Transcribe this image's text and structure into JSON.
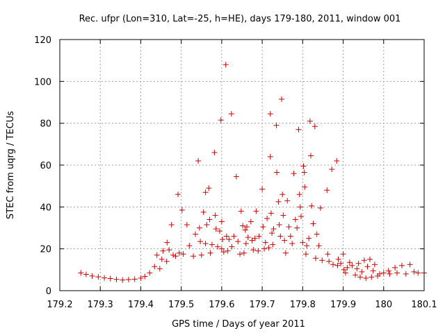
{
  "chart_data": {
    "type": "scatter",
    "title": "Rec. ufpr (Lon=310, Lat=-25, h=HE), days 179-180, 2011, window 001",
    "xlabel": "GPS time / Days of year 2011",
    "ylabel": "STEC from uqrg / TECUs",
    "xlim": [
      179.2,
      180.1
    ],
    "ylim": [
      0,
      120
    ],
    "xticks": [
      179.2,
      179.3,
      179.4,
      179.5,
      179.6,
      179.7,
      179.8,
      179.9,
      180.0,
      180.1
    ],
    "xtick_labels": [
      "179.2",
      "179.3",
      "179.4",
      "179.5",
      "179.6",
      "179.7",
      "179.8",
      "179.9",
      "180",
      "180.1"
    ],
    "yticks": [
      0,
      20,
      40,
      60,
      80,
      100,
      120
    ],
    "ytick_labels": [
      "0",
      "20",
      "40",
      "60",
      "80",
      "100",
      "120"
    ],
    "grid": true,
    "marker": "+",
    "color": "#cc0000",
    "points": [
      [
        179.252,
        8.5
      ],
      [
        179.265,
        7.8
      ],
      [
        179.28,
        7.0
      ],
      [
        179.295,
        6.6
      ],
      [
        179.31,
        6.1
      ],
      [
        179.325,
        5.8
      ],
      [
        179.34,
        5.4
      ],
      [
        179.355,
        5.1
      ],
      [
        179.37,
        5.3
      ],
      [
        179.385,
        5.5
      ],
      [
        179.4,
        6.0
      ],
      [
        179.41,
        6.8
      ],
      [
        179.422,
        8.5
      ],
      [
        179.434,
        11.5
      ],
      [
        179.44,
        17.0
      ],
      [
        179.447,
        10.5
      ],
      [
        179.452,
        15.0
      ],
      [
        179.455,
        19.0
      ],
      [
        179.465,
        23.0
      ],
      [
        179.464,
        14.0
      ],
      [
        179.47,
        19.5
      ],
      [
        179.476,
        31.5
      ],
      [
        179.48,
        17.0
      ],
      [
        179.486,
        16.5
      ],
      [
        179.492,
        46.0
      ],
      [
        179.495,
        18.0
      ],
      [
        179.502,
        38.5
      ],
      [
        179.505,
        17.5
      ],
      [
        179.514,
        31.5
      ],
      [
        179.52,
        21.5
      ],
      [
        179.53,
        16.5
      ],
      [
        179.535,
        27.0
      ],
      [
        179.542,
        62.0
      ],
      [
        179.545,
        30.0
      ],
      [
        179.547,
        23.5
      ],
      [
        179.55,
        17.0
      ],
      [
        179.555,
        37.5
      ],
      [
        179.56,
        47.0
      ],
      [
        179.56,
        22.5
      ],
      [
        179.563,
        31.5
      ],
      [
        179.568,
        49.0
      ],
      [
        179.57,
        34.0
      ],
      [
        179.572,
        18.0
      ],
      [
        179.576,
        22.0
      ],
      [
        179.582,
        66.0
      ],
      [
        179.584,
        36.0
      ],
      [
        179.586,
        29.5
      ],
      [
        179.59,
        21.0
      ],
      [
        179.595,
        28.5
      ],
      [
        179.598,
        81.5
      ],
      [
        179.6,
        33.0
      ],
      [
        179.6,
        20.0
      ],
      [
        179.602,
        24.5
      ],
      [
        179.605,
        18.5
      ],
      [
        179.61,
        108.0
      ],
      [
        179.612,
        26.0
      ],
      [
        179.615,
        19.0
      ],
      [
        179.618,
        24.5
      ],
      [
        179.624,
        84.5
      ],
      [
        179.625,
        21.0
      ],
      [
        179.63,
        26.0
      ],
      [
        179.636,
        54.5
      ],
      [
        179.64,
        23.5
      ],
      [
        179.645,
        17.5
      ],
      [
        179.648,
        38.0
      ],
      [
        179.652,
        31.0
      ],
      [
        179.655,
        18.0
      ],
      [
        179.658,
        29.0
      ],
      [
        179.66,
        22.5
      ],
      [
        179.662,
        30.5
      ],
      [
        179.665,
        25.5
      ],
      [
        179.672,
        33.0
      ],
      [
        179.675,
        24.0
      ],
      [
        179.678,
        19.5
      ],
      [
        179.682,
        25.0
      ],
      [
        179.685,
        38.0
      ],
      [
        179.69,
        19.0
      ],
      [
        179.692,
        26.0
      ],
      [
        179.7,
        48.5
      ],
      [
        179.702,
        30.5
      ],
      [
        179.705,
        20.0
      ],
      [
        179.708,
        23.0
      ],
      [
        179.712,
        34.5
      ],
      [
        179.716,
        20.5
      ],
      [
        179.72,
        84.5
      ],
      [
        179.72,
        64.0
      ],
      [
        179.722,
        37.0
      ],
      [
        179.724,
        27.5
      ],
      [
        179.726,
        22.0
      ],
      [
        179.728,
        29.5
      ],
      [
        179.735,
        79.0
      ],
      [
        179.736,
        56.5
      ],
      [
        179.74,
        42.5
      ],
      [
        179.742,
        31.5
      ],
      [
        179.745,
        26.0
      ],
      [
        179.748,
        91.5
      ],
      [
        179.75,
        46.0
      ],
      [
        179.752,
        36.0
      ],
      [
        179.755,
        24.0
      ],
      [
        179.758,
        18.0
      ],
      [
        179.762,
        43.0
      ],
      [
        179.766,
        30.5
      ],
      [
        179.77,
        26.0
      ],
      [
        179.774,
        22.5
      ],
      [
        179.778,
        56.0
      ],
      [
        179.782,
        34.0
      ],
      [
        179.786,
        30.0
      ],
      [
        179.79,
        77.0
      ],
      [
        179.792,
        46.0
      ],
      [
        179.794,
        40.0
      ],
      [
        179.796,
        35.5
      ],
      [
        179.8,
        23.0
      ],
      [
        179.802,
        59.5
      ],
      [
        179.804,
        56.5
      ],
      [
        179.805,
        49.5
      ],
      [
        179.808,
        17.5
      ],
      [
        179.81,
        21.5
      ],
      [
        179.815,
        25.0
      ],
      [
        179.818,
        81.0
      ],
      [
        179.82,
        64.5
      ],
      [
        179.822,
        40.5
      ],
      [
        179.826,
        32.0
      ],
      [
        179.83,
        78.5
      ],
      [
        179.832,
        15.5
      ],
      [
        179.835,
        27.0
      ],
      [
        179.84,
        21.5
      ],
      [
        179.844,
        39.5
      ],
      [
        179.848,
        14.5
      ],
      [
        179.86,
        48.0
      ],
      [
        179.862,
        17.5
      ],
      [
        179.865,
        14.0
      ],
      [
        179.872,
        58.0
      ],
      [
        179.875,
        12.5
      ],
      [
        179.884,
        62.0
      ],
      [
        179.886,
        12.0
      ],
      [
        179.888,
        15.0
      ],
      [
        179.894,
        13.0
      ],
      [
        179.9,
        17.5
      ],
      [
        179.902,
        10.0
      ],
      [
        179.906,
        8.5
      ],
      [
        179.91,
        11.0
      ],
      [
        179.916,
        13.5
      ],
      [
        179.922,
        12.0
      ],
      [
        179.93,
        7.5
      ],
      [
        179.934,
        10.5
      ],
      [
        179.938,
        13.0
      ],
      [
        179.942,
        6.5
      ],
      [
        179.946,
        9.0
      ],
      [
        179.952,
        14.5
      ],
      [
        179.956,
        6.0
      ],
      [
        179.96,
        11.5
      ],
      [
        179.966,
        15.0
      ],
      [
        179.97,
        6.5
      ],
      [
        179.974,
        9.5
      ],
      [
        179.978,
        12.5
      ],
      [
        179.985,
        7.0
      ],
      [
        179.99,
        8.0
      ],
      [
        180.0,
        8.5
      ],
      [
        180.012,
        9.5
      ],
      [
        180.015,
        8.0
      ],
      [
        180.028,
        11.0
      ],
      [
        180.033,
        8.5
      ],
      [
        180.045,
        12.0
      ],
      [
        180.055,
        8.0
      ],
      [
        180.065,
        12.5
      ],
      [
        180.075,
        9.0
      ],
      [
        180.085,
        8.5
      ],
      [
        180.1,
        8.5
      ]
    ]
  }
}
